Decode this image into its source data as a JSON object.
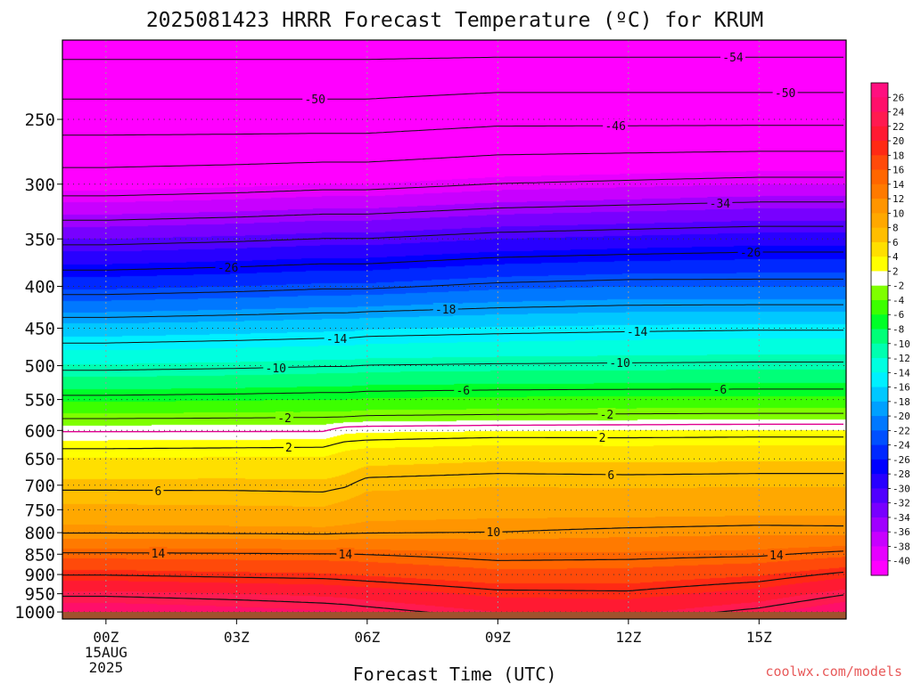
{
  "chart_data": {
    "type": "heatmap",
    "title": "2025081423 HRRR Forecast Temperature (ºC) for KRUM",
    "xlabel": "Forecast Time (UTC)",
    "ylabel": "",
    "credit": "coolwx.com/models",
    "x_axis": {
      "unit": "forecast hour",
      "range": [
        -1,
        17
      ],
      "ticks": [
        {
          "hour": 0,
          "label": "00Z",
          "sub1": "15AUG",
          "sub2": "2025"
        },
        {
          "hour": 3,
          "label": "03Z",
          "sub1": "",
          "sub2": ""
        },
        {
          "hour": 6,
          "label": "06Z",
          "sub1": "",
          "sub2": ""
        },
        {
          "hour": 9,
          "label": "09Z",
          "sub1": "",
          "sub2": ""
        },
        {
          "hour": 12,
          "label": "12Z",
          "sub1": "",
          "sub2": ""
        },
        {
          "hour": 15,
          "label": "15Z",
          "sub1": "",
          "sub2": ""
        }
      ]
    },
    "y_axis": {
      "unit": "hPa",
      "scale": "log",
      "inverted": true,
      "range": [
        200,
        1020
      ],
      "ticks": [
        250,
        300,
        350,
        400,
        450,
        500,
        550,
        600,
        650,
        700,
        750,
        800,
        850,
        900,
        950,
        1000
      ]
    },
    "grid": {
      "vertical_dotted": true,
      "horizontal_dotted": true
    },
    "colorbar": {
      "location": "right",
      "labels": [
        26,
        24,
        22,
        20,
        18,
        16,
        14,
        12,
        10,
        8,
        6,
        4,
        2,
        -2,
        -4,
        -6,
        -8,
        -10,
        -12,
        -14,
        -16,
        -18,
        -20,
        -22,
        -24,
        -26,
        -28,
        -30,
        -32,
        -34,
        -36,
        -38,
        -40
      ],
      "bins": [
        {
          "hi": 99,
          "lo": 25,
          "color": "#ff0f7f"
        },
        {
          "hi": 25,
          "lo": 23,
          "color": "#ff0f6a"
        },
        {
          "hi": 23,
          "lo": 21,
          "color": "#ff1a50"
        },
        {
          "hi": 21,
          "lo": 19,
          "color": "#ff1a32"
        },
        {
          "hi": 19,
          "lo": 17,
          "color": "#ff2a14"
        },
        {
          "hi": 17,
          "lo": 15,
          "color": "#ff4a0a"
        },
        {
          "hi": 15,
          "lo": 13,
          "color": "#ff6600"
        },
        {
          "hi": 13,
          "lo": 11,
          "color": "#ff7a00"
        },
        {
          "hi": 11,
          "lo": 9,
          "color": "#ff9500"
        },
        {
          "hi": 9,
          "lo": 7,
          "color": "#ffa800"
        },
        {
          "hi": 7,
          "lo": 5,
          "color": "#ffbe00"
        },
        {
          "hi": 5,
          "lo": 3,
          "color": "#ffdf00"
        },
        {
          "hi": 3,
          "lo": 1,
          "color": "#ffff00"
        },
        {
          "hi": 1,
          "lo": -1,
          "color": "#ffffff"
        },
        {
          "hi": -1,
          "lo": -3,
          "color": "#7fff00"
        },
        {
          "hi": -3,
          "lo": -5,
          "color": "#3cff00"
        },
        {
          "hi": -5,
          "lo": -7,
          "color": "#00ff28"
        },
        {
          "hi": -7,
          "lo": -9,
          "color": "#00ff78"
        },
        {
          "hi": -9,
          "lo": -11,
          "color": "#00ffb0"
        },
        {
          "hi": -11,
          "lo": -13,
          "color": "#00ffe0"
        },
        {
          "hi": -13,
          "lo": -15,
          "color": "#00f0ff"
        },
        {
          "hi": -15,
          "lo": -17,
          "color": "#00c8ff"
        },
        {
          "hi": -17,
          "lo": -19,
          "color": "#00a0ff"
        },
        {
          "hi": -19,
          "lo": -21,
          "color": "#0078ff"
        },
        {
          "hi": -21,
          "lo": -23,
          "color": "#0050ff"
        },
        {
          "hi": -23,
          "lo": -25,
          "color": "#0028ff"
        },
        {
          "hi": -25,
          "lo": -27,
          "color": "#0000ff"
        },
        {
          "hi": -27,
          "lo": -29,
          "color": "#2800ff"
        },
        {
          "hi": -29,
          "lo": -31,
          "color": "#5000ff"
        },
        {
          "hi": -31,
          "lo": -33,
          "color": "#7800ff"
        },
        {
          "hi": -33,
          "lo": -35,
          "color": "#a000ff"
        },
        {
          "hi": -35,
          "lo": -37,
          "color": "#c800ff"
        },
        {
          "hi": -37,
          "lo": -39,
          "color": "#e600ff"
        },
        {
          "hi": -39,
          "lo": -999,
          "color": "#ff00ff"
        }
      ]
    },
    "ground_color": "#a0522d",
    "freezing_line_color": "#e00090",
    "profile_hours": [
      -1,
      0,
      3,
      5,
      5.5,
      6,
      9,
      12,
      15,
      17
    ],
    "profiles": [
      {
        "p": 200,
        "t": [
          -56,
          -56,
          -56,
          -56,
          -56,
          -56,
          -56,
          -56,
          -56,
          -56
        ]
      },
      {
        "p": 250,
        "t": [
          -48,
          -48,
          -48,
          -48,
          -48,
          -48,
          -47,
          -47,
          -47,
          -47
        ]
      },
      {
        "p": 300,
        "t": [
          -40,
          -40,
          -39.5,
          -39,
          -39,
          -39,
          -38,
          -37.5,
          -37,
          -37
        ]
      },
      {
        "p": 350,
        "t": [
          -31,
          -31,
          -30.5,
          -30,
          -30,
          -30,
          -29,
          -28.5,
          -28,
          -28
        ]
      },
      {
        "p": 400,
        "t": [
          -23.5,
          -23.5,
          -23,
          -22.5,
          -22.5,
          -22.5,
          -21.5,
          -21,
          -21,
          -21
        ]
      },
      {
        "p": 450,
        "t": [
          -16.2,
          -16.2,
          -15.8,
          -15.5,
          -15.5,
          -15.2,
          -14.8,
          -14.5,
          -14.3,
          -14.3
        ]
      },
      {
        "p": 500,
        "t": [
          -10.8,
          -10.8,
          -10.5,
          -10.2,
          -10.2,
          -10,
          -9.8,
          -9.7,
          -9.6,
          -9.6
        ]
      },
      {
        "p": 550,
        "t": [
          -5.4,
          -5.4,
          -5.2,
          -5,
          -5,
          -4.8,
          -4.6,
          -4.5,
          -4.5,
          -4.5
        ]
      },
      {
        "p": 580,
        "t": [
          -2.1,
          -2.1,
          -2,
          -1.9,
          -1.8,
          -1.6,
          -1.4,
          -1.3,
          -1.2,
          -1.2
        ]
      },
      {
        "p": 600,
        "t": [
          -0.2,
          -0.2,
          -0.2,
          -0.2,
          0.6,
          0.7,
          0.9,
          1.0,
          1.1,
          1.1
        ]
      },
      {
        "p": 620,
        "t": [
          1.2,
          1.2,
          1.3,
          1.4,
          2.0,
          2.2,
          2.6,
          2.5,
          2.6,
          2.6
        ]
      },
      {
        "p": 650,
        "t": [
          3.1,
          3.1,
          3.2,
          3.2,
          3.9,
          4.4,
          4.8,
          4.7,
          4.8,
          4.8
        ]
      },
      {
        "p": 700,
        "t": [
          5.6,
          5.6,
          5.6,
          5.5,
          5.8,
          6.6,
          6.9,
          6.8,
          6.9,
          6.9
        ]
      },
      {
        "p": 750,
        "t": [
          7.4,
          7.4,
          7.3,
          7.2,
          7.7,
          8.2,
          8.4,
          8.3,
          8.4,
          8.4
        ]
      },
      {
        "p": 800,
        "t": [
          9.8,
          9.8,
          9.7,
          9.6,
          9.7,
          9.8,
          10.0,
          10.4,
          10.7,
          10.6
        ]
      },
      {
        "p": 850,
        "t": [
          14.2,
          14.2,
          14.1,
          14.0,
          14.0,
          13.9,
          13.2,
          13.3,
          13.6,
          14.5
        ]
      },
      {
        "p": 900,
        "t": [
          17.8,
          17.8,
          17.4,
          17.2,
          17.0,
          16.8,
          15.6,
          15.8,
          16.8,
          18.4
        ]
      },
      {
        "p": 950,
        "t": [
          21.5,
          21.5,
          21.0,
          20.6,
          20.4,
          20.1,
          18.5,
          18.3,
          19.8,
          21.8
        ]
      },
      {
        "p": 1000,
        "t": [
          24.5,
          24.5,
          23.8,
          23.2,
          23.0,
          22.7,
          21.0,
          20.6,
          22.5,
          24.6
        ]
      }
    ],
    "contour_levels": {
      "solid_warm": [
        2,
        6,
        10,
        14,
        18,
        22
      ],
      "dashed_cold": [
        -2,
        -6,
        -10,
        -14,
        -18,
        -22,
        -26,
        -30,
        -34,
        -38,
        -42,
        -46,
        -50,
        -54
      ],
      "freezing": 0
    },
    "contour_labels": [
      {
        "hour": 14.4,
        "text": "-54"
      },
      {
        "hour": 4.8,
        "text": "-50"
      },
      {
        "hour": 15.6,
        "text": "-50"
      },
      {
        "hour": 11.7,
        "text": "-46"
      },
      {
        "hour": 14.1,
        "text": "-34"
      },
      {
        "hour": 2.8,
        "text": "-26"
      },
      {
        "hour": 14.8,
        "text": "-26"
      },
      {
        "hour": 7.8,
        "text": "-18"
      },
      {
        "hour": 5.3,
        "text": "-14"
      },
      {
        "hour": 12.2,
        "text": "-14"
      },
      {
        "hour": 3.9,
        "text": "-10"
      },
      {
        "hour": 11.8,
        "text": "-10"
      },
      {
        "hour": 8.2,
        "text": "-6"
      },
      {
        "hour": 14.1,
        "text": "-6"
      },
      {
        "hour": 4.1,
        "text": "-2"
      },
      {
        "hour": 11.5,
        "text": "-2"
      },
      {
        "hour": 4.2,
        "text": "2"
      },
      {
        "hour": 11.4,
        "text": "2"
      },
      {
        "hour": 1.2,
        "text": "6"
      },
      {
        "hour": 11.6,
        "text": "6"
      },
      {
        "hour": 8.9,
        "text": "10"
      },
      {
        "hour": 1.2,
        "text": "14"
      },
      {
        "hour": 5.5,
        "text": "14"
      },
      {
        "hour": 15.4,
        "text": "14"
      }
    ]
  }
}
